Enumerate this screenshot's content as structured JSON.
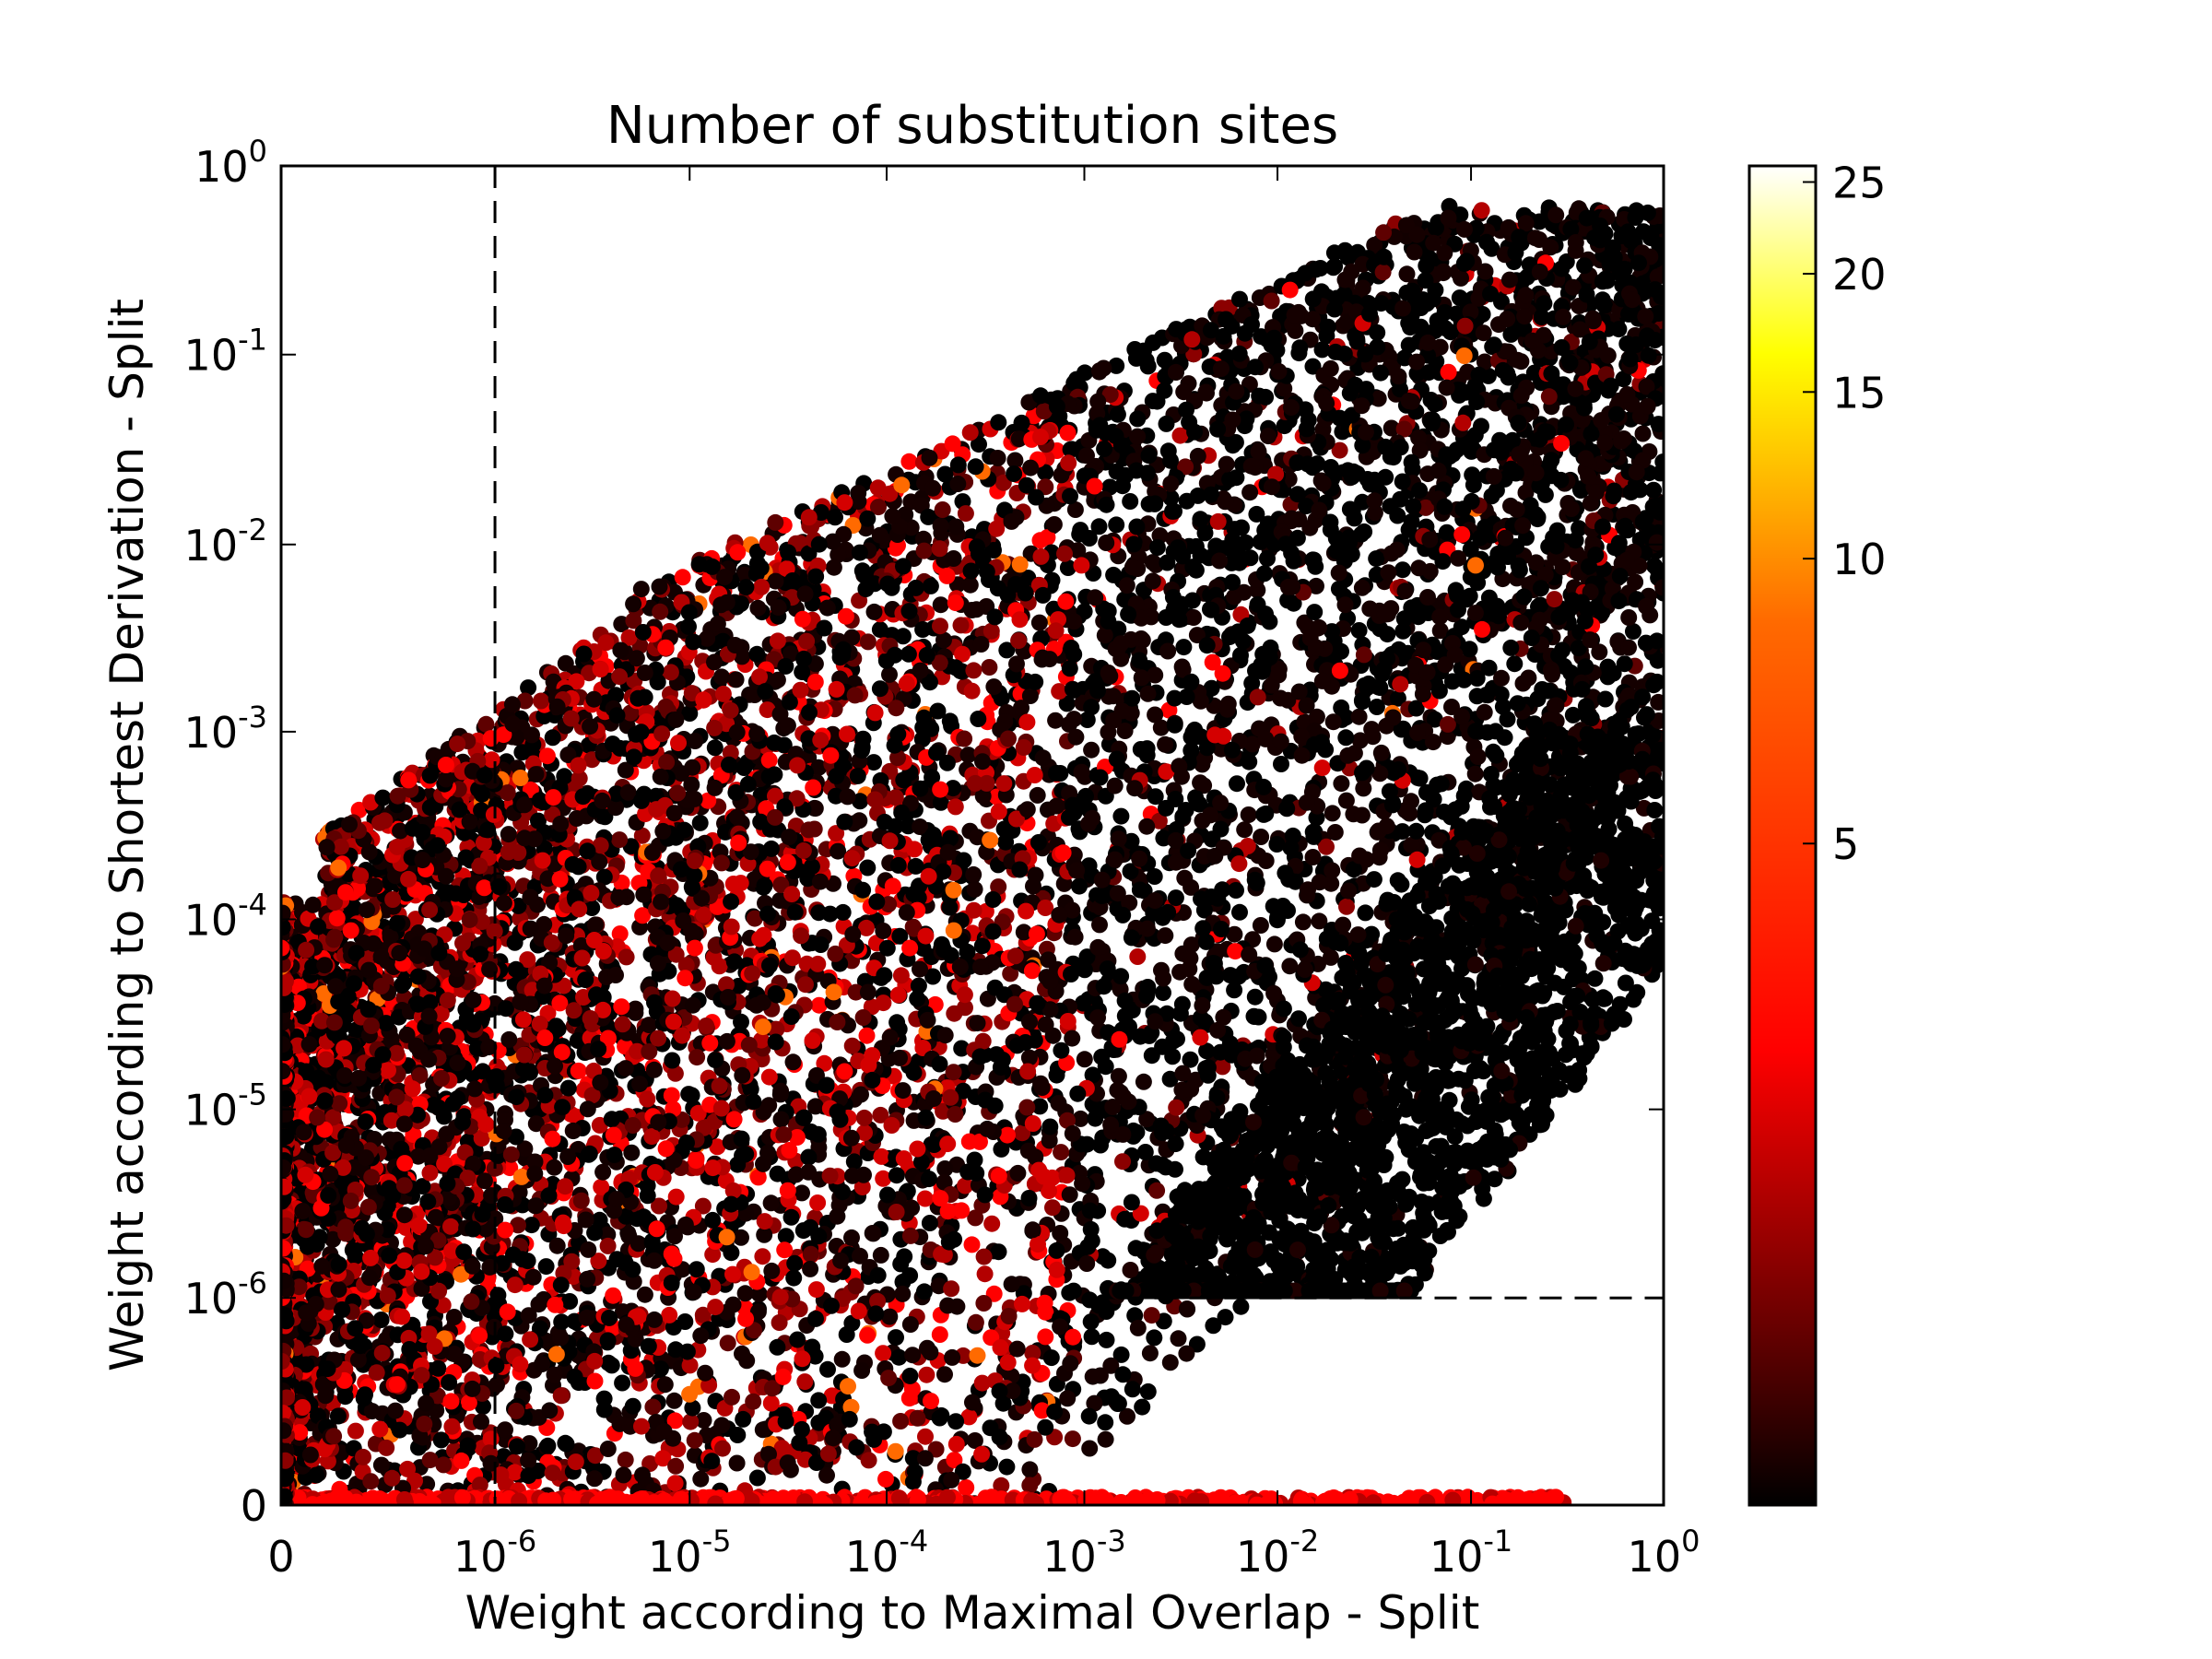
{
  "chart_data": {
    "type": "scatter",
    "title": "Number of substitution sites",
    "xlabel": "Weight according to Maximal Overlap - Split",
    "ylabel": "Weight according to Shortest Derivation - Split",
    "x_scale": "symlog",
    "y_scale": "symlog",
    "xlim": [
      0,
      1
    ],
    "ylim": [
      0,
      1
    ],
    "grid": false,
    "x_ticks": [
      {
        "value": 0,
        "base": "0",
        "exp": ""
      },
      {
        "value": 1e-06,
        "base": "10",
        "exp": "-6"
      },
      {
        "value": 1e-05,
        "base": "10",
        "exp": "-5"
      },
      {
        "value": 0.0001,
        "base": "10",
        "exp": "-4"
      },
      {
        "value": 0.001,
        "base": "10",
        "exp": "-3"
      },
      {
        "value": 0.01,
        "base": "10",
        "exp": "-2"
      },
      {
        "value": 0.1,
        "base": "10",
        "exp": "-1"
      },
      {
        "value": 1,
        "base": "10",
        "exp": "0"
      }
    ],
    "y_ticks": [
      {
        "value": 0,
        "base": "0",
        "exp": ""
      },
      {
        "value": 1e-06,
        "base": "10",
        "exp": "-6"
      },
      {
        "value": 1e-05,
        "base": "10",
        "exp": "-5"
      },
      {
        "value": 0.0001,
        "base": "10",
        "exp": "-4"
      },
      {
        "value": 0.001,
        "base": "10",
        "exp": "-3"
      },
      {
        "value": 0.01,
        "base": "10",
        "exp": "-2"
      },
      {
        "value": 0.1,
        "base": "10",
        "exp": "-1"
      },
      {
        "value": 1,
        "base": "10",
        "exp": "0"
      }
    ],
    "reference_lines": [
      {
        "orientation": "vertical",
        "value": 1e-06,
        "style": "dashed"
      },
      {
        "orientation": "horizontal",
        "value": 1e-06,
        "style": "dashed",
        "x_start": 0.001
      }
    ],
    "colorbar": {
      "label": "",
      "colormap": "hot",
      "range": [
        1,
        26
      ],
      "scale": "log",
      "ticks": [
        5,
        10,
        15,
        20,
        25
      ],
      "tick_labels": [
        "5",
        "10",
        "15",
        "20",
        "25"
      ],
      "stops": [
        "#000000",
        "#5e0000",
        "#ff0000",
        "#ff6a00",
        "#ffff00",
        "#ffffff"
      ]
    },
    "point_color_mix": {
      "upper_left_region_red_fraction": 0.5,
      "lower_right_region_red_fraction": 0.08
    }
  }
}
